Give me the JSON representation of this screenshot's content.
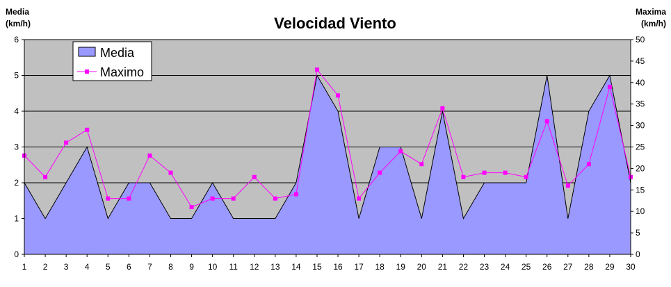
{
  "chart_data": {
    "type": "area",
    "title": "Velocidad Viento",
    "y_left_label": [
      "Media",
      "(km/h)"
    ],
    "y_right_label": [
      "Maxima",
      "(km/h)"
    ],
    "x": [
      1,
      2,
      3,
      4,
      5,
      6,
      7,
      8,
      9,
      10,
      11,
      12,
      13,
      14,
      15,
      16,
      17,
      18,
      19,
      20,
      21,
      22,
      23,
      24,
      25,
      26,
      27,
      28,
      29,
      30
    ],
    "y_left_range": [
      0,
      6
    ],
    "y_left_ticks": [
      0,
      1,
      2,
      3,
      4,
      5,
      6
    ],
    "y_right_range": [
      0,
      50
    ],
    "y_right_ticks": [
      0,
      5,
      10,
      15,
      20,
      25,
      30,
      35,
      40,
      45,
      50
    ],
    "grid": true,
    "legend": "top-left",
    "series": [
      {
        "name": "Media",
        "kind": "area",
        "axis": "left",
        "color": "#9999ff",
        "values": [
          2,
          1,
          2,
          3,
          1,
          2,
          2,
          1,
          1,
          2,
          1,
          1,
          1,
          2,
          5,
          4,
          1,
          3,
          3,
          1,
          4,
          1,
          2,
          2,
          2,
          5,
          1,
          4,
          5,
          2
        ]
      },
      {
        "name": "Maximo",
        "kind": "line",
        "axis": "right",
        "color": "#ff00ff",
        "values": [
          23,
          18,
          26,
          29,
          13,
          13,
          23,
          19,
          11,
          13,
          13,
          18,
          13,
          14,
          43,
          37,
          13,
          19,
          24,
          21,
          34,
          18,
          19,
          19,
          18,
          31,
          16,
          21,
          39,
          18
        ]
      }
    ]
  },
  "colors": {
    "plot_background": "#c0c0c0",
    "area_fill": "#9999ff",
    "line": "#ff00ff",
    "gridline": "#000000"
  }
}
